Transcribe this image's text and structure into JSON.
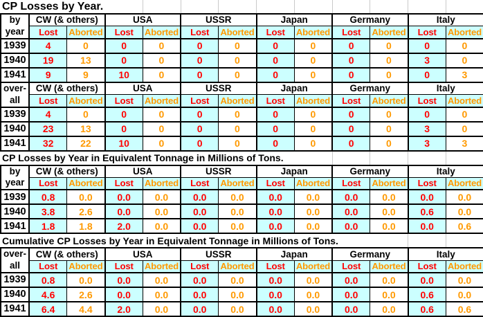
{
  "colors": {
    "lost_fill": "#CCFFFF",
    "lost_text": "#FF0000",
    "aborted_text": "#FF9900",
    "gridline": "#C9C9C9",
    "border": "#000000"
  },
  "chart_data": {
    "type": "table",
    "column_groups": [
      "CW (& others)",
      "USA",
      "USSR",
      "Japan",
      "Germany",
      "Italy"
    ],
    "sub_columns": [
      "Lost",
      "Aborted"
    ],
    "tables": [
      {
        "title": "CP Losses by Year.",
        "row_header_lines": [
          "by",
          "year"
        ],
        "years": [
          "1939",
          "1940",
          "1941"
        ],
        "rows": [
          [
            "4",
            "0",
            "0",
            "0",
            "0",
            "0",
            "0",
            "0",
            "0",
            "0",
            "0",
            "0"
          ],
          [
            "19",
            "13",
            "0",
            "0",
            "0",
            "0",
            "0",
            "0",
            "0",
            "0",
            "3",
            "0"
          ],
          [
            "9",
            "9",
            "10",
            "0",
            "0",
            "0",
            "0",
            "0",
            "0",
            "0",
            "0",
            "3"
          ]
        ]
      },
      {
        "title": "",
        "row_header_lines": [
          "over-",
          "all"
        ],
        "years": [
          "1939",
          "1940",
          "1941"
        ],
        "rows": [
          [
            "4",
            "0",
            "0",
            "0",
            "0",
            "0",
            "0",
            "0",
            "0",
            "0",
            "0",
            "0"
          ],
          [
            "23",
            "13",
            "0",
            "0",
            "0",
            "0",
            "0",
            "0",
            "0",
            "0",
            "3",
            "0"
          ],
          [
            "32",
            "22",
            "10",
            "0",
            "0",
            "0",
            "0",
            "0",
            "0",
            "0",
            "3",
            "3"
          ]
        ]
      },
      {
        "title": "CP Losses by Year in Equivalent Tonnage in Millions of Tons.",
        "row_header_lines": [
          "by",
          "year"
        ],
        "years": [
          "1939",
          "1940",
          "1941"
        ],
        "rows": [
          [
            "0.8",
            "0.0",
            "0.0",
            "0.0",
            "0.0",
            "0.0",
            "0.0",
            "0.0",
            "0.0",
            "0.0",
            "0.0",
            "0.0"
          ],
          [
            "3.8",
            "2.6",
            "0.0",
            "0.0",
            "0.0",
            "0.0",
            "0.0",
            "0.0",
            "0.0",
            "0.0",
            "0.6",
            "0.0"
          ],
          [
            "1.8",
            "1.8",
            "2.0",
            "0.0",
            "0.0",
            "0.0",
            "0.0",
            "0.0",
            "0.0",
            "0.0",
            "0.0",
            "0.6"
          ]
        ]
      },
      {
        "title": "Cumulative CP Losses by Year in Equivalent Tonnage in Millions of Tons.",
        "row_header_lines": [
          "over-",
          "all"
        ],
        "years": [
          "1939",
          "1940",
          "1941"
        ],
        "rows": [
          [
            "0.8",
            "0.0",
            "0.0",
            "0.0",
            "0.0",
            "0.0",
            "0.0",
            "0.0",
            "0.0",
            "0.0",
            "0.0",
            "0.0"
          ],
          [
            "4.6",
            "2.6",
            "0.0",
            "0.0",
            "0.0",
            "0.0",
            "0.0",
            "0.0",
            "0.0",
            "0.0",
            "0.6",
            "0.0"
          ],
          [
            "6.4",
            "4.4",
            "2.0",
            "0.0",
            "0.0",
            "0.0",
            "0.0",
            "0.0",
            "0.0",
            "0.0",
            "0.6",
            "0.6"
          ]
        ]
      }
    ]
  }
}
